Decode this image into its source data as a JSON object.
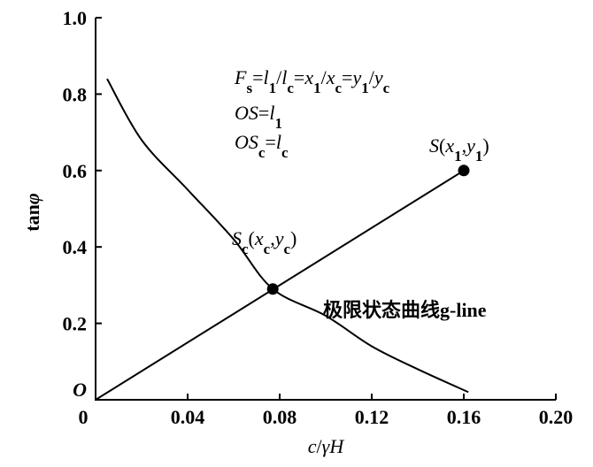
{
  "chart_data": {
    "type": "line",
    "xlabel": [
      "c",
      "/",
      "γH"
    ],
    "ylabel": [
      "tan",
      "φ"
    ],
    "xlim": [
      0,
      0.2
    ],
    "ylim": [
      0,
      1.0
    ],
    "xticks": [
      0,
      0.04,
      0.08,
      0.12,
      0.16,
      {
        "value": 0.2,
        "label": "0.20"
      }
    ],
    "yticks": [
      {
        "value": 0,
        "label": "O"
      },
      0.2,
      0.4,
      0.6,
      0.8,
      {
        "value": 1.0,
        "label": "1.0"
      }
    ],
    "color": "#000000",
    "series": [
      {
        "x": [
          0,
          0.16
        ],
        "values": [
          0,
          0.6
        ]
      },
      {
        "x": [
          0.005,
          0.02,
          0.04,
          0.06,
          0.077,
          0.1,
          0.12,
          0.14,
          0.162
        ],
        "values": [
          0.84,
          0.68,
          0.55,
          0.42,
          0.29,
          0.22,
          0.14,
          0.08,
          0.02
        ]
      }
    ],
    "points": {
      "x": [
        0.077,
        0.16
      ],
      "values": [
        0.29,
        0.6
      ]
    },
    "annotations": [
      [
        "F",
        "s",
        "=",
        "l",
        "1",
        "/",
        "l",
        "c",
        "=",
        "x",
        "1",
        "/",
        "x",
        "c",
        "=",
        "y",
        "1",
        "/",
        "y",
        "c"
      ],
      [
        "OS",
        "=",
        "l",
        "1"
      ],
      [
        "OS",
        "c",
        "=",
        "l",
        "c"
      ],
      [
        "S",
        "(",
        "x",
        "1",
        ",",
        "y",
        "1",
        ")"
      ],
      [
        "S",
        "c",
        "(",
        "x",
        "c",
        ",",
        "y",
        "c",
        ")"
      ],
      [
        "极限状态曲线g-line"
      ]
    ]
  }
}
